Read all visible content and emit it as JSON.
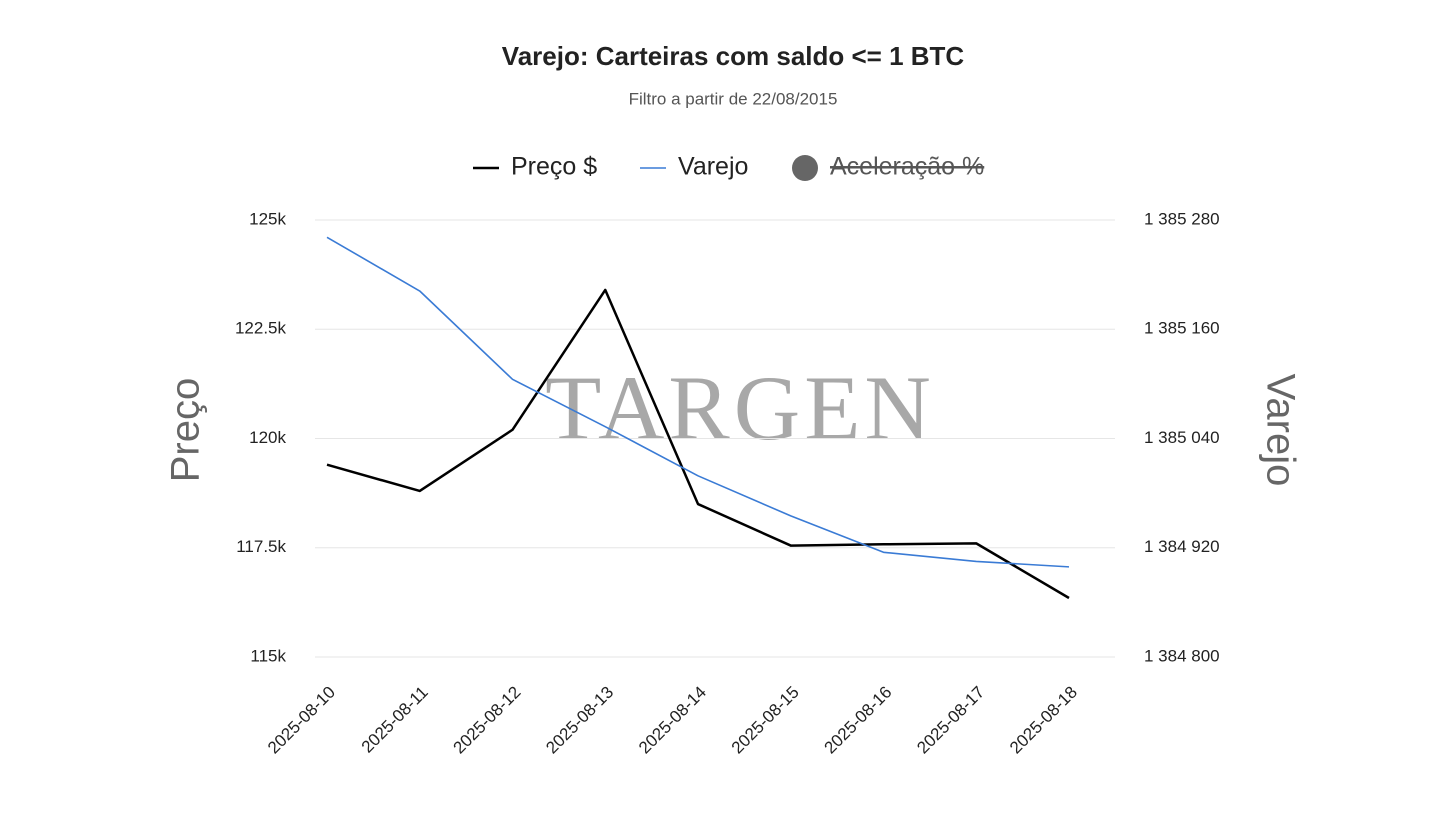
{
  "chart_data": {
    "type": "line",
    "title": "Varejo: Carteiras com saldo <= 1 BTC",
    "subtitle": "Filtro a partir de 22/08/2015",
    "watermark": "TARGEN",
    "y_label": "Preço",
    "y2_label": "Varejo",
    "categories": [
      "2025-08-10",
      "2025-08-11",
      "2025-08-12",
      "2025-08-13",
      "2025-08-14",
      "2025-08-15",
      "2025-08-16",
      "2025-08-17",
      "2025-08-18"
    ],
    "series": [
      {
        "name": "Preço $",
        "color": "#000000",
        "values": [
          119400,
          118800,
          120200,
          123400,
          118500,
          117550,
          117580,
          117600,
          116350
        ]
      },
      {
        "name": "Varejo",
        "color": "#3a7bd5",
        "axis": "y2",
        "values": [
          1385261,
          1385202,
          1385105,
          1385053,
          1384999,
          1384955,
          1384915,
          1384905,
          1384899
        ]
      },
      {
        "name": "Aceleração %",
        "color": "#666666",
        "hidden": true,
        "values": [
          null,
          null,
          null,
          null,
          null,
          null,
          null,
          null,
          null
        ]
      }
    ],
    "ylim": [
      115000,
      125000
    ],
    "yticks": [
      {
        "value": 115000,
        "label": "115k"
      },
      {
        "value": 117500,
        "label": "117.5k"
      },
      {
        "value": 120000,
        "label": "120k"
      },
      {
        "value": 122500,
        "label": "122.5k"
      },
      {
        "value": 125000,
        "label": "125k"
      }
    ],
    "y2lim": [
      1384800,
      1385280
    ],
    "y2ticks": [
      {
        "value": 1384800,
        "label": "1 384 800"
      },
      {
        "value": 1384920,
        "label": "1 384 920"
      },
      {
        "value": 1385040,
        "label": "1 385 040"
      },
      {
        "value": 1385160,
        "label": "1 385 160"
      },
      {
        "value": 1385280,
        "label": "1 385 280"
      }
    ],
    "grid": true
  }
}
